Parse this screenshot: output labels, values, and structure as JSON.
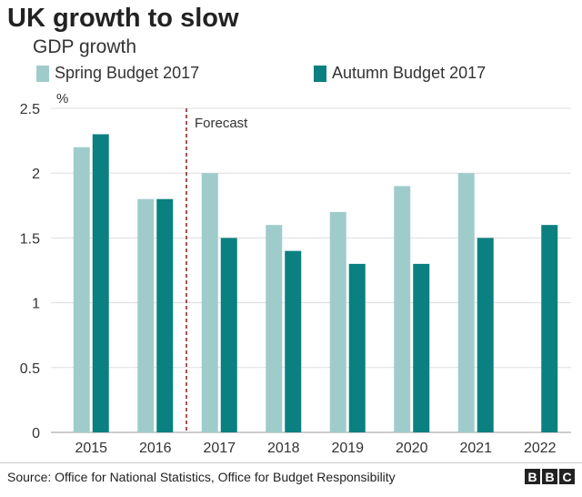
{
  "title": "UK growth to slow",
  "subtitle": "GDP growth",
  "source": "Source: Office for National Statistics, Office for Budget Responsibility",
  "logo": "BBC",
  "chart_data": {
    "type": "bar",
    "categories": [
      "2015",
      "2016",
      "2017",
      "2018",
      "2019",
      "2020",
      "2021",
      "2022"
    ],
    "series": [
      {
        "name": "Spring Budget 2017",
        "color": "#9fcccb",
        "values": [
          2.2,
          1.8,
          2.0,
          1.6,
          1.7,
          1.9,
          2.0,
          null
        ]
      },
      {
        "name": "Autumn Budget 2017",
        "color": "#0b8080",
        "values": [
          2.3,
          1.8,
          1.5,
          1.4,
          1.3,
          1.3,
          1.5,
          1.6
        ]
      }
    ],
    "ylabel": "%",
    "ylim": [
      0,
      2.5
    ],
    "yticks": [
      "0",
      "0.5",
      "1",
      "1.5",
      "2",
      "2.5"
    ],
    "grid": true,
    "legend_position": "top",
    "annotation": {
      "label": "Forecast",
      "between": [
        "2016",
        "2017"
      ],
      "color": "#8b1a1a"
    }
  }
}
